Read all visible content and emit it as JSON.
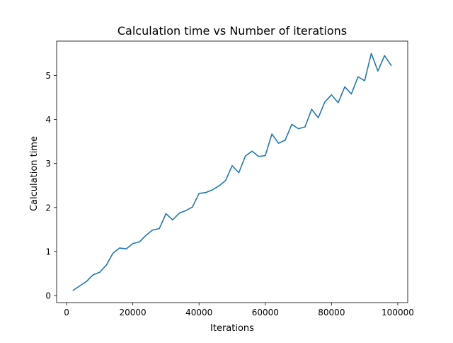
{
  "chart_data": {
    "type": "line",
    "title": "Calculation time vs Number of iterations",
    "xlabel": "Iterations",
    "ylabel": "Calculation time",
    "xlim": [
      -3000,
      103000
    ],
    "ylim": [
      -0.16,
      5.78
    ],
    "xticks": [
      0,
      20000,
      40000,
      60000,
      80000,
      100000
    ],
    "yticks": [
      0,
      1,
      2,
      3,
      4,
      5
    ],
    "grid": false,
    "legend": "none",
    "series": [
      {
        "color": "#1f77b4",
        "x": [
          2000,
          4000,
          6000,
          8000,
          10000,
          12000,
          14000,
          16000,
          18000,
          20000,
          22000,
          24000,
          26000,
          28000,
          30000,
          32000,
          34000,
          36000,
          38000,
          40000,
          42000,
          44000,
          46000,
          48000,
          50000,
          52000,
          54000,
          56000,
          58000,
          60000,
          62000,
          64000,
          66000,
          68000,
          70000,
          72000,
          74000,
          76000,
          78000,
          80000,
          82000,
          84000,
          86000,
          88000,
          90000,
          92000,
          94000,
          96000,
          98000
        ],
        "y": [
          0.12,
          0.22,
          0.32,
          0.47,
          0.53,
          0.69,
          0.96,
          1.08,
          1.06,
          1.18,
          1.22,
          1.37,
          1.49,
          1.52,
          1.86,
          1.72,
          1.87,
          1.93,
          2.01,
          2.32,
          2.34,
          2.4,
          2.49,
          2.61,
          2.95,
          2.79,
          3.17,
          3.28,
          3.16,
          3.18,
          3.67,
          3.46,
          3.53,
          3.89,
          3.79,
          3.83,
          4.23,
          4.04,
          4.4,
          4.56,
          4.38,
          4.74,
          4.58,
          4.97,
          4.88,
          5.5,
          5.1,
          5.45,
          5.23
        ]
      }
    ]
  }
}
